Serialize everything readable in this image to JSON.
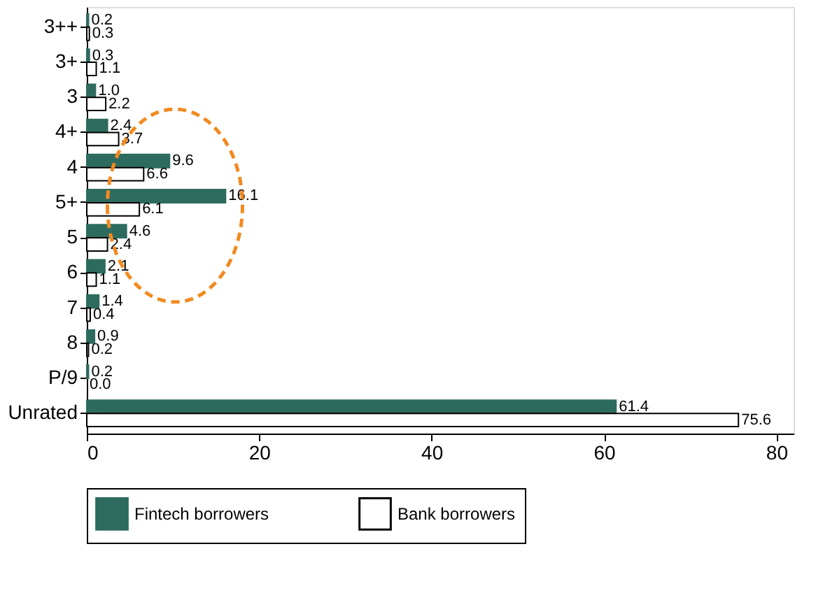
{
  "chart_data": {
    "type": "bar",
    "orientation": "horizontal",
    "categories": [
      "3++",
      "3+",
      "3",
      "4+",
      "4",
      "5+",
      "5",
      "6",
      "7",
      "8",
      "P/9",
      "Unrated"
    ],
    "series": [
      {
        "name": "Fintech borrowers",
        "color": "#2e6b5f",
        "values": [
          0.2,
          0.3,
          1.0,
          2.4,
          9.6,
          16.1,
          4.6,
          2.1,
          1.4,
          0.9,
          0.2,
          61.4
        ],
        "value_labels": [
          "0.2",
          "0.3",
          "1.0",
          "2.4",
          "9.6",
          "16.1",
          "4.6",
          "2.1",
          "1.4",
          "0.9",
          "0.2",
          "61.4"
        ]
      },
      {
        "name": "Bank borrowers",
        "color": "#ffffff",
        "values": [
          0.3,
          1.1,
          2.2,
          3.7,
          6.6,
          6.1,
          2.4,
          1.1,
          0.4,
          0.2,
          0.0,
          75.6
        ],
        "value_labels": [
          "0.3",
          "1.1",
          "2.2",
          "3.7",
          "6.6",
          "6.1",
          "2.4",
          "1.1",
          "0.4",
          "0.2",
          "0.0",
          "75.6"
        ]
      }
    ],
    "xlim": [
      0,
      82
    ],
    "xticks": [
      0,
      20,
      40,
      60,
      80
    ],
    "grid": false,
    "legend": "bottom"
  }
}
